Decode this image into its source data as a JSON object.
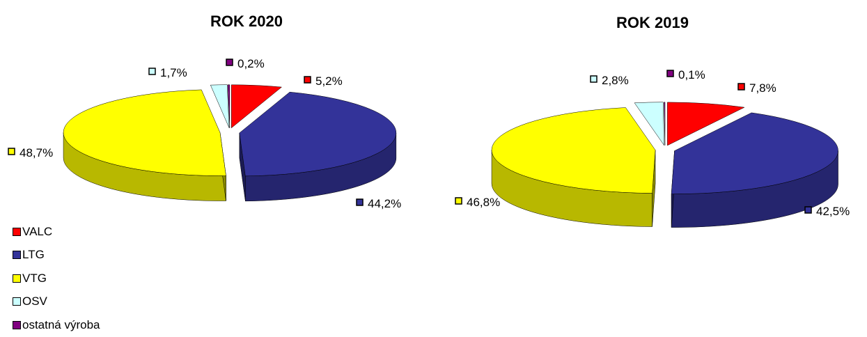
{
  "chart_data": [
    {
      "type": "pie",
      "title": "ROK 2020",
      "categories": [
        "VALC",
        "LTG",
        "VTG",
        "OSV",
        "ostatná výroba"
      ],
      "values": [
        5.2,
        44.2,
        48.7,
        1.7,
        0.2
      ],
      "data_labels": [
        "5,2%",
        "44,2%",
        "48,7%",
        "1,7%",
        "0,2%"
      ],
      "style": "3d-exploded"
    },
    {
      "type": "pie",
      "title": "ROK 2019",
      "categories": [
        "VALC",
        "LTG",
        "VTG",
        "OSV",
        "ostatná výroba"
      ],
      "values": [
        7.8,
        42.5,
        46.8,
        2.8,
        0.1
      ],
      "data_labels": [
        "7,8%",
        "42,5%",
        "46,8%",
        "2,8%",
        "0,1%"
      ],
      "style": "3d-exploded"
    }
  ],
  "legend": {
    "placement": "bottom-left",
    "items": [
      {
        "label": "VALC",
        "color": "#FF0000"
      },
      {
        "label": "LTG",
        "color": "#333399"
      },
      {
        "label": "VTG",
        "color": "#FFFF00"
      },
      {
        "label": "OSV",
        "color": "#CCFFFF"
      },
      {
        "label": "ostatná výroba",
        "color": "#800080"
      }
    ]
  },
  "colors": {
    "VALC": "#FF0000",
    "LTG": "#333399",
    "VTG": "#FFFF00",
    "OSV": "#CCFFFF",
    "ostatná výroba": "#800080"
  }
}
